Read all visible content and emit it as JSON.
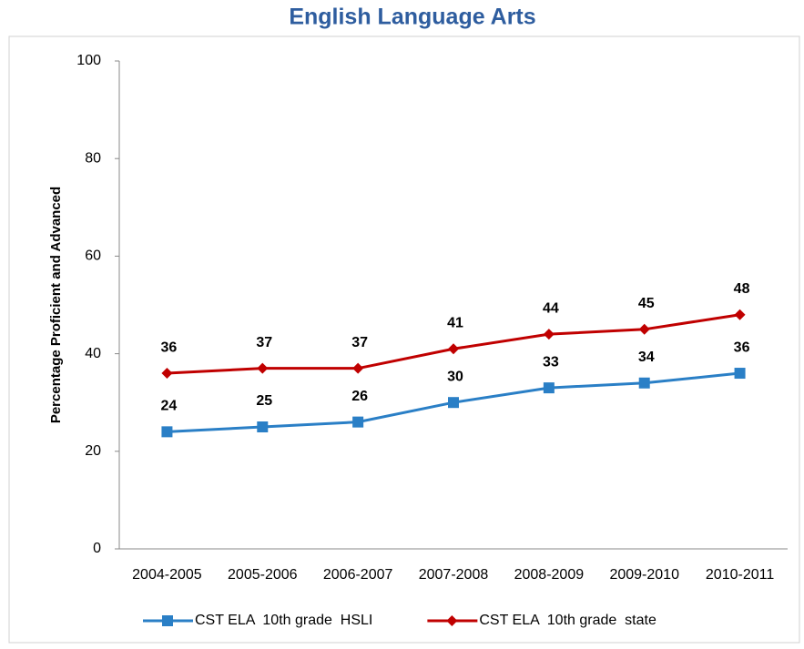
{
  "chart_data": {
    "type": "line",
    "title": "English Language Arts",
    "y_label": "Percentage Proficient and Advanced",
    "categories": [
      "2004-2005",
      "2005-2006",
      "2006-2007",
      "2007-2008",
      "2008-2009",
      "2009-2010",
      "2010-2011"
    ],
    "series": [
      {
        "name": "CST ELA  10th grade  HSLI",
        "color": "#2a7fc6",
        "marker": "square",
        "values": [
          24,
          25,
          26,
          30,
          33,
          34,
          36
        ]
      },
      {
        "name": "CST ELA  10th grade  state",
        "color": "#c00000",
        "marker": "diamond",
        "values": [
          36,
          37,
          37,
          41,
          44,
          45,
          48
        ]
      }
    ],
    "ylim": [
      0,
      100
    ],
    "yticks": [
      0,
      20,
      40,
      60,
      80,
      100
    ],
    "grid": false,
    "legend": "bottom"
  }
}
